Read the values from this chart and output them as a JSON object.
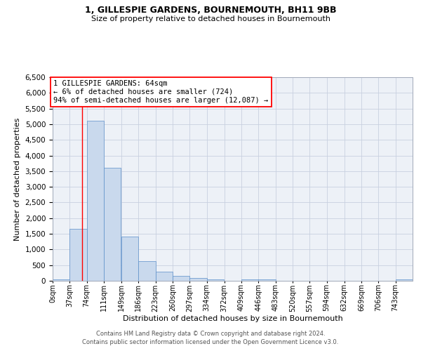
{
  "title1": "1, GILLESPIE GARDENS, BOURNEMOUTH, BH11 9BB",
  "title2": "Size of property relative to detached houses in Bournemouth",
  "xlabel": "Distribution of detached houses by size in Bournemouth",
  "ylabel": "Number of detached properties",
  "bin_edges": [
    0,
    37,
    74,
    111,
    149,
    186,
    223,
    260,
    297,
    334,
    372,
    409,
    446,
    483,
    520,
    557,
    594,
    632,
    669,
    706,
    743,
    780
  ],
  "bar_heights": [
    50,
    1650,
    5100,
    3600,
    1420,
    620,
    300,
    155,
    100,
    50,
    0,
    50,
    50,
    0,
    0,
    0,
    0,
    0,
    0,
    0,
    50
  ],
  "bar_color": "#c9d9ed",
  "bar_edge_color": "#5b8fc9",
  "red_line_x": 64,
  "annotation_line1": "1 GILLESPIE GARDENS: 64sqm",
  "annotation_line2": "← 6% of detached houses are smaller (724)",
  "annotation_line3": "94% of semi-detached houses are larger (12,087) →",
  "ylim_max": 6500,
  "yticks": [
    0,
    500,
    1000,
    1500,
    2000,
    2500,
    3000,
    3500,
    4000,
    4500,
    5000,
    5500,
    6000,
    6500
  ],
  "grid_color": "#c8d0e0",
  "background_color": "#edf1f7",
  "footnote1": "Contains HM Land Registry data © Crown copyright and database right 2024.",
  "footnote2": "Contains public sector information licensed under the Open Government Licence v3.0."
}
